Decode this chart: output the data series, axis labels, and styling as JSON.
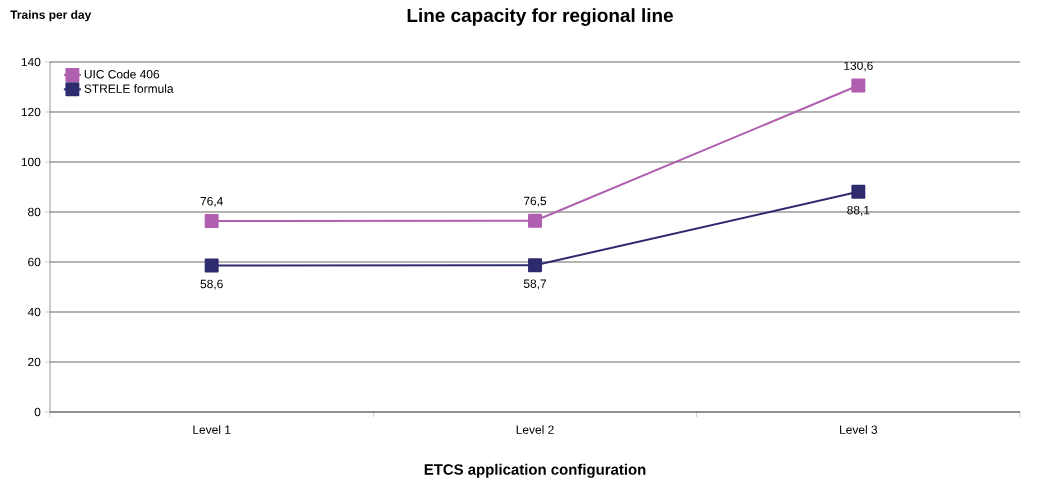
{
  "chart_data": {
    "type": "line",
    "title": "Line capacity for regional line",
    "ylabel": "Trains per day",
    "xlabel": "ETCS application configuration",
    "categories": [
      "Level 1",
      "Level 2",
      "Level 3"
    ],
    "series": [
      {
        "name": "UIC Code 406",
        "color": "#b05fb0",
        "values": [
          76.4,
          76.5,
          130.6
        ],
        "value_labels": [
          "76,4",
          "76,5",
          "130,6"
        ]
      },
      {
        "name": "STRELE formula",
        "color": "#2e2a6e",
        "values": [
          58.6,
          58.7,
          88.1
        ],
        "value_labels": [
          "58,6",
          "58,7",
          "88,1"
        ]
      }
    ],
    "ylim": [
      0,
      140
    ],
    "yticks": [
      0,
      20,
      40,
      60,
      80,
      100,
      120,
      140
    ],
    "grid": "y",
    "legend": "top left",
    "marker": "square",
    "line_style": "solid"
  }
}
